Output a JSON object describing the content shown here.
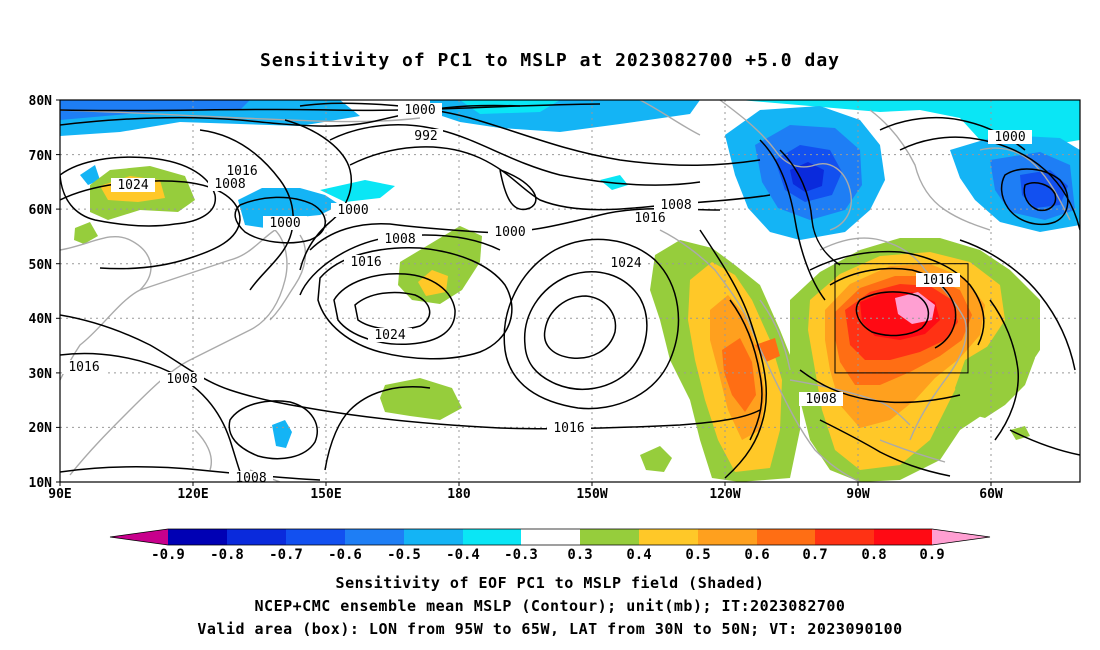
{
  "title": "Sensitivity of PC1 to MSLP at 2023082700 +5.0 day",
  "lat_ticks": [
    "80N",
    "70N",
    "60N",
    "50N",
    "40N",
    "30N",
    "20N",
    "10N"
  ],
  "lon_ticks": [
    "90E",
    "120E",
    "150E",
    "180",
    "150W",
    "120W",
    "90W",
    "60W"
  ],
  "colorbar": {
    "labels": [
      "-0.9",
      "-0.8",
      "-0.7",
      "-0.6",
      "-0.5",
      "-0.4",
      "-0.3",
      "0.3",
      "0.4",
      "0.5",
      "0.6",
      "0.7",
      "0.8",
      "0.9"
    ],
    "colors": [
      "#c8008c",
      "#0000b4",
      "#0a2adc",
      "#1250f0",
      "#1e7ef5",
      "#14b4f5",
      "#0ae6f5",
      "#ffffff",
      "#96cd3c",
      "#ffc828",
      "#ffa01e",
      "#ff6e14",
      "#ff3214",
      "#ff0a14",
      "#ff9fd2"
    ]
  },
  "contour_labels": [
    "1000",
    "992",
    "1016",
    "1008",
    "1024",
    "1000",
    "1000",
    "1008",
    "1000",
    "1016",
    "1024",
    "1008",
    "1016",
    "1024",
    "1016",
    "1008",
    "1016",
    "1008",
    "1016",
    "1000",
    "1008"
  ],
  "valid_area": {
    "lon_from": "95W",
    "lon_to": "65W",
    "lat_from": "30N",
    "lat_to": "50N"
  },
  "captions": [
    "Sensitivity of EOF PC1 to MSLP field (Shaded)",
    "NCEP+CMC ensemble mean MSLP (Contour); unit(mb); IT:2023082700",
    "Valid area (box): LON from 95W to 65W, LAT from 30N to 50N; VT: 2023090100"
  ]
}
